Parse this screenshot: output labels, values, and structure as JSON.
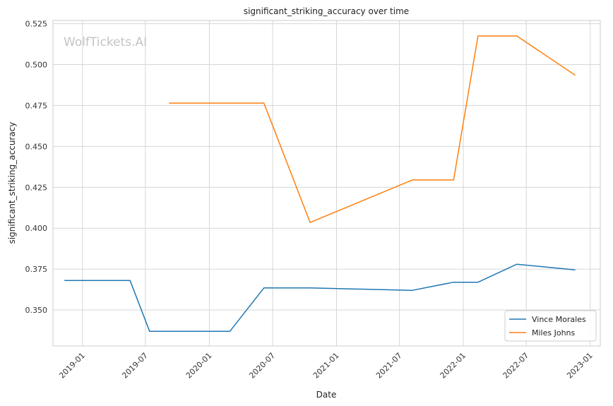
{
  "chart_data": {
    "type": "line",
    "title": "significant_striking_accuracy over time",
    "xlabel": "Date",
    "ylabel": "significant_striking_accuracy",
    "watermark": "WolfTickets.AI",
    "x_ticks": [
      "2019-01",
      "2019-07",
      "2020-01",
      "2020-07",
      "2021-01",
      "2021-07",
      "2022-01",
      "2022-07",
      "2023-01"
    ],
    "y_ticks": [
      0.35,
      0.375,
      0.4,
      0.425,
      0.45,
      0.475,
      0.5,
      0.525
    ],
    "y_tick_labels": [
      "0.350",
      "0.375",
      "0.400",
      "0.425",
      "0.450",
      "0.475",
      "0.500",
      "0.525"
    ],
    "xlim": [
      "2018-10-08",
      "2023-01-30"
    ],
    "ylim": [
      0.328,
      0.527
    ],
    "grid": true,
    "legend_position": "bottom-right",
    "series": [
      {
        "name": "Vince Morales",
        "color": "#1f77b4",
        "points": [
          {
            "x": "2018-11-10",
            "y": 0.368
          },
          {
            "x": "2019-05-18",
            "y": 0.368
          },
          {
            "x": "2019-07-13",
            "y": 0.337
          },
          {
            "x": "2020-02-29",
            "y": 0.337
          },
          {
            "x": "2020-06-06",
            "y": 0.3635
          },
          {
            "x": "2020-10-17",
            "y": 0.3635
          },
          {
            "x": "2021-08-07",
            "y": 0.362
          },
          {
            "x": "2021-12-04",
            "y": 0.367
          },
          {
            "x": "2022-02-12",
            "y": 0.367
          },
          {
            "x": "2022-06-04",
            "y": 0.378
          },
          {
            "x": "2022-11-19",
            "y": 0.3745
          }
        ]
      },
      {
        "name": "Miles Johns",
        "color": "#ff7f0e",
        "points": [
          {
            "x": "2019-09-07",
            "y": 0.4765
          },
          {
            "x": "2020-06-06",
            "y": 0.4765
          },
          {
            "x": "2020-10-17",
            "y": 0.4035
          },
          {
            "x": "2021-08-07",
            "y": 0.4295
          },
          {
            "x": "2021-12-04",
            "y": 0.4295
          },
          {
            "x": "2022-02-12",
            "y": 0.5175
          },
          {
            "x": "2022-06-04",
            "y": 0.5175
          },
          {
            "x": "2022-11-19",
            "y": 0.4935
          }
        ]
      }
    ]
  }
}
